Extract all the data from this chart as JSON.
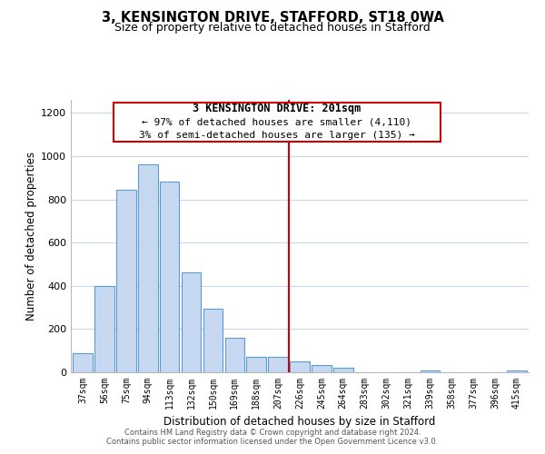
{
  "title": "3, KENSINGTON DRIVE, STAFFORD, ST18 0WA",
  "subtitle": "Size of property relative to detached houses in Stafford",
  "xlabel": "Distribution of detached houses by size in Stafford",
  "ylabel": "Number of detached properties",
  "bar_labels": [
    "37sqm",
    "56sqm",
    "75sqm",
    "94sqm",
    "113sqm",
    "132sqm",
    "150sqm",
    "169sqm",
    "188sqm",
    "207sqm",
    "226sqm",
    "245sqm",
    "264sqm",
    "283sqm",
    "302sqm",
    "321sqm",
    "339sqm",
    "358sqm",
    "377sqm",
    "396sqm",
    "415sqm"
  ],
  "bar_heights": [
    90,
    400,
    845,
    960,
    880,
    460,
    295,
    160,
    70,
    70,
    50,
    35,
    20,
    0,
    0,
    0,
    10,
    0,
    0,
    0,
    10
  ],
  "bar_color": "#c6d9f0",
  "bar_edge_color": "#5b9bd5",
  "reference_line_idx": 9.5,
  "reference_line_color": "#cc0000",
  "annotation_title": "3 KENSINGTON DRIVE: 201sqm",
  "annotation_line1": "← 97% of detached houses are smaller (4,110)",
  "annotation_line2": "3% of semi-detached houses are larger (135) →",
  "annotation_box_color": "#cc0000",
  "annotation_bg": "#ffffff",
  "ylim": [
    0,
    1260
  ],
  "yticks": [
    0,
    200,
    400,
    600,
    800,
    1000,
    1200
  ],
  "footer_line1": "Contains HM Land Registry data © Crown copyright and database right 2024.",
  "footer_line2": "Contains public sector information licensed under the Open Government Licence v3.0.",
  "bg_color": "#ffffff",
  "grid_color": "#c8d8e8"
}
